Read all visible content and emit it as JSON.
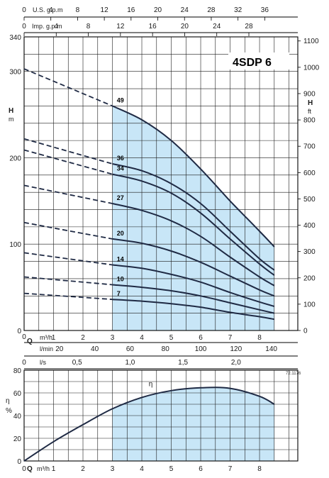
{
  "chart_data": [
    {
      "type": "line",
      "title": "4SDP 6",
      "ylabel_left": "H",
      "ylabel_left_unit": "m",
      "ylabel_right": "H",
      "ylabel_right_unit": "ft",
      "xlabel": "Q",
      "x_unit_m3h": "m³/h",
      "x_unit_lmin": "l/min",
      "top_axis_us_label": "U.S. g.p.m",
      "top_axis_imp_label": "Imp. g.p.m",
      "x_range": [
        0,
        9.3
      ],
      "y_range": [
        0,
        340
      ],
      "y_right_range": [
        0,
        1100
      ],
      "left_ticks": [
        "0",
        "100",
        "200",
        "300",
        "340"
      ],
      "right_ticks": [
        "0",
        "100",
        "200",
        "300",
        "400",
        "500",
        "600",
        "700",
        "800",
        "900",
        "1000",
        "1100"
      ],
      "bottom_m3h_ticks": [
        "1",
        "2",
        "3",
        "4",
        "5",
        "6",
        "7",
        "8"
      ],
      "bottom_lmin_ticks": [
        "20",
        "40",
        "60",
        "80",
        "100",
        "120",
        "140"
      ],
      "top_us_ticks": [
        "0",
        "4",
        "8",
        "12",
        "16",
        "20",
        "24",
        "28",
        "32",
        "36"
      ],
      "top_imp_ticks": [
        "0",
        "4",
        "8",
        "12",
        "16",
        "20",
        "24",
        "28"
      ],
      "ls_label": "l/s",
      "ls_ticks": [
        "0,5",
        "1,0",
        "1,5",
        "2,0"
      ],
      "ref_code": "72.1176",
      "operating_range": [
        3,
        8.5
      ],
      "series": [
        {
          "name": "49",
          "points": [
            [
              0,
              303
            ],
            [
              3,
              260
            ],
            [
              4,
              244
            ],
            [
              5,
              220
            ],
            [
              6,
              187
            ],
            [
              7,
              150
            ],
            [
              8,
              115
            ],
            [
              8.5,
              97
            ]
          ]
        },
        {
          "name": "36",
          "points": [
            [
              0,
              222
            ],
            [
              3,
              193
            ],
            [
              4,
              185
            ],
            [
              5,
              170
            ],
            [
              6,
              147
            ],
            [
              7,
              115
            ],
            [
              8,
              83
            ],
            [
              8.5,
              70
            ]
          ]
        },
        {
          "name": "34",
          "points": [
            [
              0,
              209
            ],
            [
              3,
              181
            ],
            [
              4,
              173
            ],
            [
              5,
              159
            ],
            [
              6,
              136
            ],
            [
              7,
              106
            ],
            [
              8,
              77
            ],
            [
              8.5,
              64
            ]
          ]
        },
        {
          "name": "27",
          "points": [
            [
              0,
              168
            ],
            [
              3,
              147
            ],
            [
              4,
              139
            ],
            [
              5,
              127
            ],
            [
              6,
              109
            ],
            [
              7,
              85
            ],
            [
              8,
              62
            ],
            [
              8.5,
              52
            ]
          ]
        },
        {
          "name": "20",
          "points": [
            [
              0,
              125
            ],
            [
              3,
              106
            ],
            [
              4,
              101
            ],
            [
              5,
              92
            ],
            [
              6,
              79
            ],
            [
              7,
              63
            ],
            [
              8,
              47
            ],
            [
              8.5,
              40
            ]
          ]
        },
        {
          "name": "14",
          "points": [
            [
              0,
              90
            ],
            [
              3,
              76
            ],
            [
              4,
              72
            ],
            [
              5,
              65
            ],
            [
              6,
              56
            ],
            [
              7,
              44
            ],
            [
              8,
              33
            ],
            [
              8.5,
              28
            ]
          ]
        },
        {
          "name": "10",
          "points": [
            [
              0,
              62
            ],
            [
              3,
              53
            ],
            [
              4,
              50
            ],
            [
              5,
              46
            ],
            [
              6,
              40
            ],
            [
              7,
              32
            ],
            [
              8,
              24
            ],
            [
              8.5,
              20
            ]
          ]
        },
        {
          "name": "7",
          "points": [
            [
              0,
              43
            ],
            [
              3,
              36
            ],
            [
              4,
              34
            ],
            [
              5,
              31
            ],
            [
              6,
              27
            ],
            [
              7,
              21
            ],
            [
              8,
              16
            ],
            [
              8.5,
              13
            ]
          ]
        }
      ]
    },
    {
      "type": "line",
      "ylabel": "η",
      "ylabel_unit": "%",
      "xlabel": "Q",
      "x_unit": "m³/h",
      "x_range": [
        0,
        9.3
      ],
      "y_range": [
        0,
        80
      ],
      "y_ticks": [
        "0",
        "20",
        "40",
        "60",
        "80"
      ],
      "x_ticks": [
        "0",
        "1",
        "2",
        "3",
        "4",
        "5",
        "6",
        "7",
        "8"
      ],
      "operating_range": [
        3,
        8.5
      ],
      "series": [
        {
          "name": "η",
          "points": [
            [
              0,
              0
            ],
            [
              1,
              17
            ],
            [
              2,
              32
            ],
            [
              3,
              46
            ],
            [
              4,
              56
            ],
            [
              5,
              62
            ],
            [
              6,
              64.5
            ],
            [
              7,
              64
            ],
            [
              8,
              57
            ],
            [
              8.5,
              50
            ]
          ]
        }
      ]
    }
  ]
}
